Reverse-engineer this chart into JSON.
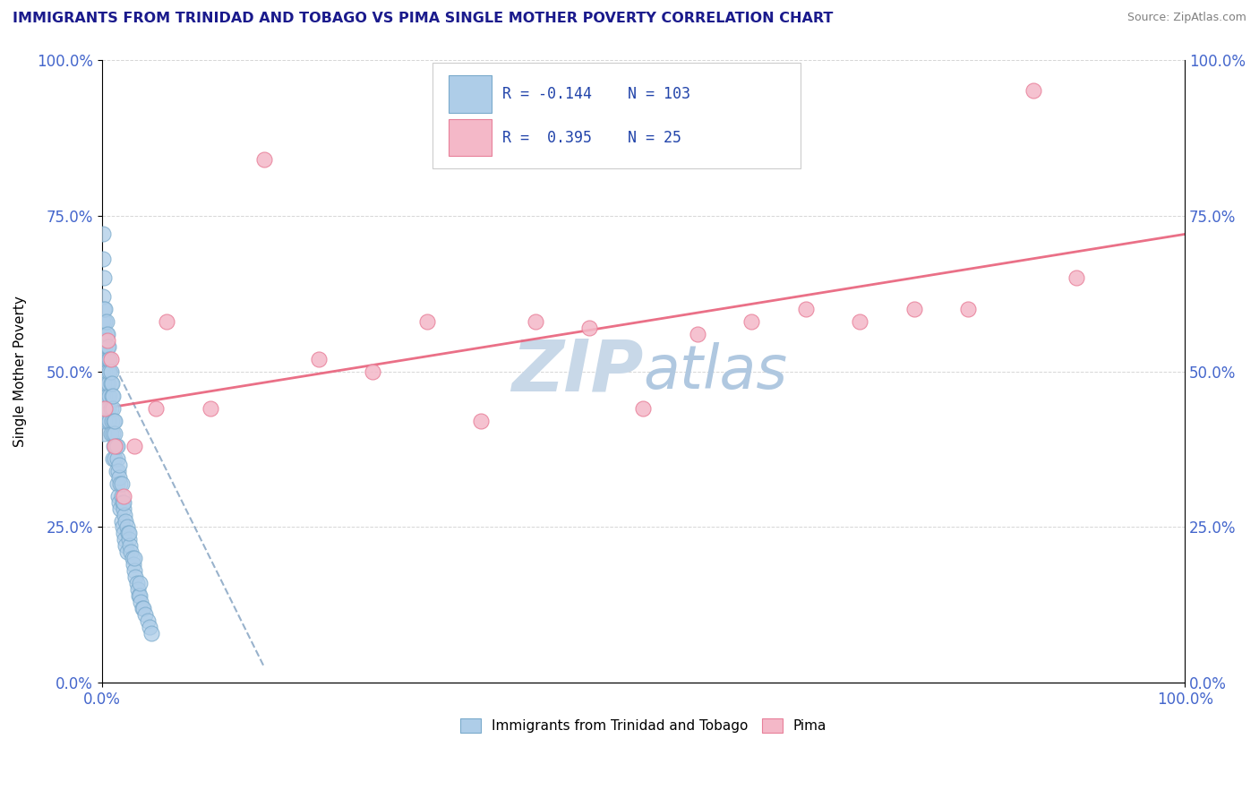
{
  "title": "IMMIGRANTS FROM TRINIDAD AND TOBAGO VS PIMA SINGLE MOTHER POVERTY CORRELATION CHART",
  "source": "Source: ZipAtlas.com",
  "ylabel": "Single Mother Poverty",
  "blue_R": -0.144,
  "blue_N": 103,
  "pink_R": 0.395,
  "pink_N": 25,
  "blue_color": "#aecde8",
  "pink_color": "#f4b8c8",
  "blue_edge_color": "#7aaacb",
  "pink_edge_color": "#e8809a",
  "blue_line_color": "#5580aa",
  "pink_line_color": "#e8607a",
  "title_color": "#1a1a8c",
  "axis_tick_color": "#4466cc",
  "watermark_zip_color": "#c8d8e8",
  "watermark_atlas_color": "#b0c8e0",
  "background": "#ffffff",
  "grid_color": "#cccccc",
  "legend_label_blue": "Immigrants from Trinidad and Tobago",
  "legend_label_pink": "Pima",
  "legend_text_color": "#2244aa",
  "legend_R_color": "#cc2222",
  "xmin": 0.0,
  "xmax": 1.0,
  "ymin": 0.0,
  "ymax": 1.0,
  "blue_points_x": [
    0.001,
    0.001,
    0.001,
    0.001,
    0.001,
    0.002,
    0.002,
    0.002,
    0.002,
    0.002,
    0.002,
    0.003,
    0.003,
    0.003,
    0.003,
    0.003,
    0.004,
    0.004,
    0.004,
    0.004,
    0.005,
    0.005,
    0.005,
    0.005,
    0.006,
    0.006,
    0.006,
    0.007,
    0.007,
    0.007,
    0.008,
    0.008,
    0.008,
    0.009,
    0.009,
    0.01,
    0.01,
    0.01,
    0.011,
    0.011,
    0.012,
    0.012,
    0.013,
    0.013,
    0.014,
    0.014,
    0.015,
    0.015,
    0.016,
    0.016,
    0.017,
    0.017,
    0.018,
    0.018,
    0.019,
    0.019,
    0.02,
    0.02,
    0.021,
    0.021,
    0.022,
    0.022,
    0.023,
    0.023,
    0.024,
    0.025,
    0.026,
    0.027,
    0.028,
    0.029,
    0.03,
    0.031,
    0.032,
    0.033,
    0.034,
    0.035,
    0.036,
    0.037,
    0.038,
    0.04,
    0.042,
    0.044,
    0.046,
    0.001,
    0.001,
    0.002,
    0.002,
    0.003,
    0.004,
    0.005,
    0.006,
    0.007,
    0.008,
    0.009,
    0.01,
    0.012,
    0.014,
    0.016,
    0.018,
    0.02,
    0.025,
    0.03,
    0.035
  ],
  "blue_points_y": [
    0.62,
    0.58,
    0.54,
    0.5,
    0.46,
    0.6,
    0.56,
    0.52,
    0.48,
    0.44,
    0.4,
    0.58,
    0.54,
    0.5,
    0.46,
    0.42,
    0.56,
    0.52,
    0.48,
    0.44,
    0.54,
    0.5,
    0.46,
    0.42,
    0.52,
    0.48,
    0.44,
    0.5,
    0.46,
    0.42,
    0.48,
    0.44,
    0.4,
    0.46,
    0.42,
    0.44,
    0.4,
    0.36,
    0.42,
    0.38,
    0.4,
    0.36,
    0.38,
    0.34,
    0.36,
    0.32,
    0.34,
    0.3,
    0.33,
    0.29,
    0.32,
    0.28,
    0.3,
    0.26,
    0.29,
    0.25,
    0.28,
    0.24,
    0.27,
    0.23,
    0.26,
    0.22,
    0.25,
    0.21,
    0.24,
    0.23,
    0.22,
    0.21,
    0.2,
    0.19,
    0.18,
    0.17,
    0.16,
    0.15,
    0.14,
    0.14,
    0.13,
    0.12,
    0.12,
    0.11,
    0.1,
    0.09,
    0.08,
    0.68,
    0.72,
    0.65,
    0.55,
    0.6,
    0.58,
    0.56,
    0.54,
    0.52,
    0.5,
    0.48,
    0.46,
    0.42,
    0.38,
    0.35,
    0.32,
    0.29,
    0.24,
    0.2,
    0.16
  ],
  "pink_points_x": [
    0.003,
    0.005,
    0.008,
    0.012,
    0.02,
    0.03,
    0.05,
    0.06,
    0.1,
    0.15,
    0.2,
    0.25,
    0.3,
    0.35,
    0.4,
    0.45,
    0.5,
    0.55,
    0.6,
    0.65,
    0.7,
    0.75,
    0.8,
    0.86,
    0.9
  ],
  "pink_points_y": [
    0.44,
    0.55,
    0.52,
    0.38,
    0.3,
    0.38,
    0.44,
    0.58,
    0.44,
    0.84,
    0.52,
    0.5,
    0.58,
    0.42,
    0.58,
    0.57,
    0.44,
    0.56,
    0.58,
    0.6,
    0.58,
    0.6,
    0.6,
    0.95,
    0.65
  ],
  "pink_line_intercept": 0.44,
  "pink_line_slope": 0.28,
  "blue_line_intercept": 0.55,
  "blue_line_slope": -3.5
}
